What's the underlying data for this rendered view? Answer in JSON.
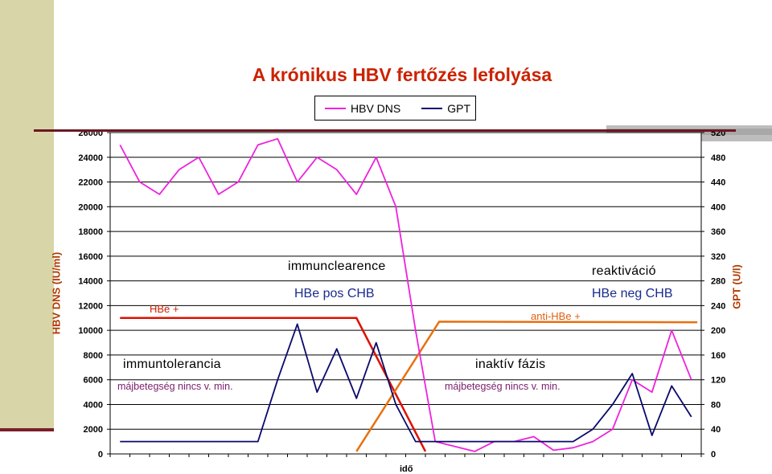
{
  "chart_data": {
    "type": "line",
    "title": "A krónikus HBV fertőzés lefolyása",
    "xlabel": "idő",
    "ylabel_left": "HBV DNS (IU/ml)",
    "ylabel_right": "GPT (U/l)",
    "ylim_left": [
      0,
      26000
    ],
    "ylim_right": [
      0,
      520
    ],
    "left_ticks": [
      0,
      2000,
      4000,
      6000,
      8000,
      10000,
      12000,
      14000,
      16000,
      18000,
      20000,
      22000,
      24000,
      26000
    ],
    "right_ticks": [
      0,
      40,
      80,
      120,
      160,
      200,
      240,
      280,
      320,
      360,
      400,
      440,
      480,
      520
    ],
    "grid": true,
    "legend_placement": "top-center",
    "x_count": 30,
    "series": [
      {
        "name": "HBV DNS",
        "axis": "left",
        "color": "#ee22dd",
        "values": [
          25000,
          22000,
          21000,
          23000,
          24000,
          21000,
          22000,
          25000,
          25500,
          22000,
          24000,
          23000,
          21000,
          24000,
          20000,
          10000,
          1000,
          600,
          200,
          1000,
          1000,
          1400,
          300,
          500,
          1000,
          2000,
          6000,
          5000,
          10000,
          6000
        ]
      },
      {
        "name": "GPT",
        "axis": "right",
        "color": "#0a0a6b",
        "values": [
          20,
          20,
          20,
          20,
          20,
          20,
          20,
          20,
          120,
          210,
          100,
          170,
          90,
          180,
          80,
          20,
          20,
          20,
          20,
          20,
          20,
          20,
          20,
          20,
          40,
          80,
          130,
          30,
          110,
          60
        ]
      }
    ],
    "annotation_lines": [
      {
        "label": "HBe +",
        "color": "#dd1100",
        "axis": "left",
        "points": [
          [
            0,
            11000
          ],
          [
            12,
            11000
          ],
          [
            15.5,
            200
          ]
        ]
      },
      {
        "label": "anti-HBe +",
        "color": "#e87010",
        "axis": "left",
        "points": [
          [
            12,
            200
          ],
          [
            16.2,
            10700
          ],
          [
            29.3,
            10650
          ]
        ]
      }
    ],
    "annotations": {
      "immunclearence": "immunclearence",
      "hbe_pos": "HBe pos CHB",
      "reaktivacio": "reaktiváció",
      "hbe_neg": "HBe neg CHB",
      "hbe_plus": "HBe +",
      "anti_hbe_plus": "anti-HBe +",
      "immuntolerancia": "immuntolerancia",
      "inaktiv": "inaktív fázis",
      "majbeteg_1": "májbetegség nincs v. min.",
      "majbeteg_2": "májbetegség nincs v. min."
    }
  }
}
